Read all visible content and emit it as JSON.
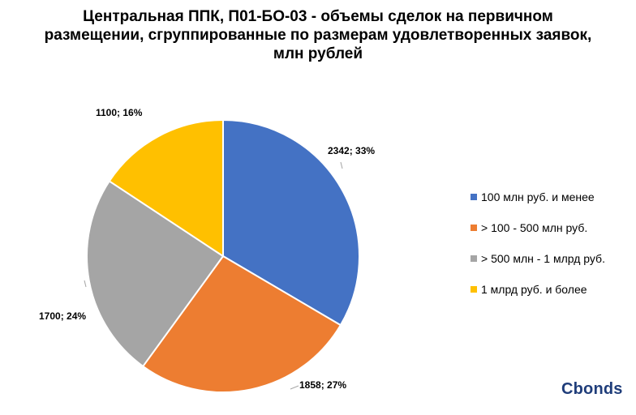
{
  "title": {
    "bold": "Центральная ППК, П01-БО-03 -",
    "rest": " объемы сделок на первичном размещении, сгруппированные по размерам удовлетворенных заявок, млн рублей"
  },
  "chart_data": {
    "type": "pie",
    "title": "Центральная ППК, П01-БО-03 - объемы сделок на первичном размещении, сгруппированные по размерам удовлетворенных заявок, млн рублей",
    "slices": [
      {
        "name": "100 млн руб. и менее",
        "value": 2342,
        "percent": 33,
        "label": "2342; 33%",
        "color": "#4472C4"
      },
      {
        "name": "> 100 - 500 млн руб.",
        "value": 1858,
        "percent": 27,
        "label": "1858; 27%",
        "color": "#ED7D31"
      },
      {
        "name": "> 500 млн - 1 млрд руб.",
        "value": 1700,
        "percent": 24,
        "label": "1700; 24%",
        "color": "#A5A5A5"
      },
      {
        "name": "1 млрд руб. и более",
        "value": 1100,
        "percent": 16,
        "label": "1100; 16%",
        "color": "#FFC000"
      }
    ],
    "start_angle_deg": 0,
    "direction": "clockwise",
    "legend_position": "right"
  },
  "logo_text": "Cbonds"
}
